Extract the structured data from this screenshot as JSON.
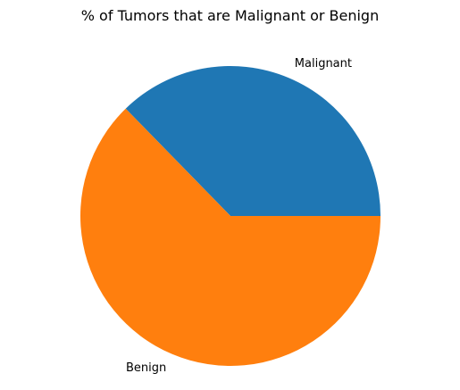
{
  "chart_data": {
    "type": "pie",
    "title": "% of Tumors that are Malignant or Benign",
    "start_angle_deg": 0,
    "direction": "counterclockwise",
    "slices": [
      {
        "label": "Malignant",
        "value": 37.3,
        "color": "#1f77b4"
      },
      {
        "label": "Benign",
        "value": 62.7,
        "color": "#ff7f0e"
      }
    ]
  }
}
